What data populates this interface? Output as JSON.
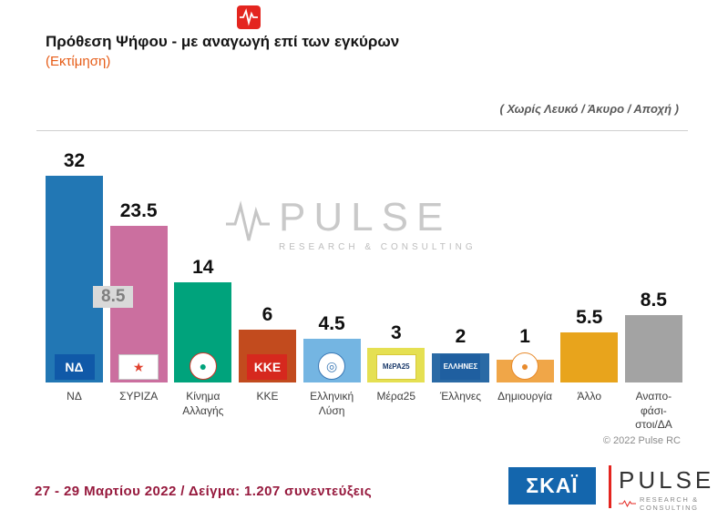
{
  "header": {
    "title": "Πρόθεση Ψήφου - με αναγωγή επί των εγκύρων",
    "subtitle": "(Εκτίμηση)",
    "note": "( Χωρίς Λευκό / Άκυρο / Αποχή )"
  },
  "watermark": {
    "brand": "PULSE",
    "tagline": "RESEARCH & CONSULTING"
  },
  "chart_data": {
    "type": "bar",
    "title": "Πρόθεση Ψήφου - με αναγωγή επί των εγκύρων (Εκτίμηση)",
    "note": "( Χωρίς Λευκό / Άκυρο / Αποχή )",
    "ylim": [
      0,
      35
    ],
    "grid": false,
    "lead_gap_label": "8.5",
    "categories": [
      "ΝΔ",
      "ΣΥΡΙΖΑ",
      "Κίνημα Αλλαγής",
      "ΚΚΕ",
      "Ελληνική Λύση",
      "Μέρα25",
      "Έλληνες",
      "Δημιουργία",
      "Άλλο",
      "Αναποφάσιστοι/ΔΑ"
    ],
    "values": [
      32,
      23.5,
      14,
      6,
      4.5,
      3,
      2,
      1,
      5.5,
      8.5
    ],
    "bars": [
      {
        "id": "nd",
        "label": "ΝΔ",
        "value": 32,
        "color": "#2277b4",
        "logo": {
          "text": "ΝΔ",
          "bg": "#1059a8",
          "fg": "#ffffff"
        }
      },
      {
        "id": "syriza",
        "label": "ΣΥΡΙΖΑ",
        "value": 23.5,
        "color": "#cb6f9f",
        "logo": {
          "text": "★",
          "bg": "#ffffff",
          "fg": "#e0412e",
          "border": "#c8c8c8"
        }
      },
      {
        "id": "kinima-allagis",
        "label": "Κίνημα\nΑλλαγής",
        "value": 14,
        "color": "#00a37c",
        "logo": {
          "text": "●",
          "bg": "#ffffff",
          "fg": "#00a37c",
          "border": "#d0352a",
          "shape": "circle"
        }
      },
      {
        "id": "kke",
        "label": "ΚΚΕ",
        "value": 6,
        "color": "#c24b1e",
        "logo": {
          "text": "ΚΚΕ",
          "bg": "#d6281e",
          "fg": "#ffffff"
        }
      },
      {
        "id": "elliniki-lysi",
        "label": "Ελληνική\nΛύση",
        "value": 4.5,
        "color": "#74b5e2",
        "logo": {
          "text": "◎",
          "bg": "#ffffff",
          "fg": "#3a78b5",
          "border": "#3a78b5",
          "shape": "circle"
        }
      },
      {
        "id": "mera25",
        "label": "Μέρα25",
        "value": 3,
        "color": "#e5e052",
        "logo": {
          "text": "ΜέΡΑ25",
          "bg": "#ffffff",
          "fg": "#1b3a6b",
          "border": "#d8c93a"
        }
      },
      {
        "id": "ellines",
        "label": "Έλληνες",
        "value": 2,
        "color": "#2a6aa5",
        "logo": {
          "text": "ΕΛΛΗΝΕΣ",
          "bg": "#1f5fa0",
          "fg": "#ffffff"
        }
      },
      {
        "id": "dimiourgia",
        "label": "Δημιουργία",
        "value": 1,
        "color": "#f0a648",
        "logo": {
          "text": "●",
          "bg": "#ffffff",
          "fg": "#e88b2d",
          "border": "#e88b2d",
          "shape": "circle"
        }
      },
      {
        "id": "allo",
        "label": "Άλλο",
        "value": 5.5,
        "color": "#e8a41c",
        "logo": null
      },
      {
        "id": "anapofasistoi",
        "label": "Αναπο-\nφάσι-\nστοι/ΔΑ",
        "value": 8.5,
        "color": "#a3a3a3",
        "logo": null
      }
    ]
  },
  "footnote": {
    "copyright": "© 2022 Pulse RC"
  },
  "footer": {
    "fieldwork": "27 - 29  Μαρτίου  2022  /  Δείγμα:  1.207 συνεντεύξεις",
    "skai": "ΣΚΑΪ",
    "pulse_brand": "PULSE",
    "pulse_tagline": "RESEARCH & CONSULTING"
  }
}
